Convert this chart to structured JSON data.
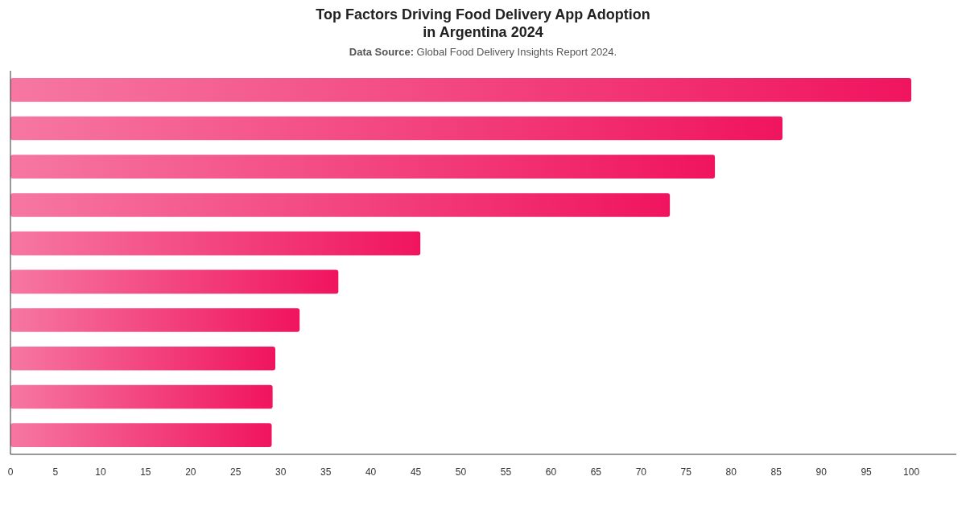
{
  "chart_data": {
    "type": "bar",
    "orientation": "horizontal",
    "title": "Top Factors Driving Food Delivery App Adoption in Argentina 2024",
    "subtitle": "Data Source: Global Food Delivery Insights Report 2024.",
    "categories": [
      null,
      null,
      null,
      null,
      null,
      null,
      null,
      null,
      null,
      null
    ],
    "values": [
      100,
      85.7,
      78.2,
      73.2,
      45.5,
      36.4,
      32.1,
      29.4,
      29.1,
      29.0
    ],
    "color": "#f0145f",
    "xlim": [
      0,
      105
    ],
    "xticks": [
      0,
      5,
      10,
      15,
      20,
      25,
      30,
      35,
      40,
      45,
      50,
      55,
      60,
      65,
      70,
      75,
      80,
      85,
      90,
      95,
      100
    ],
    "grid": false
  }
}
